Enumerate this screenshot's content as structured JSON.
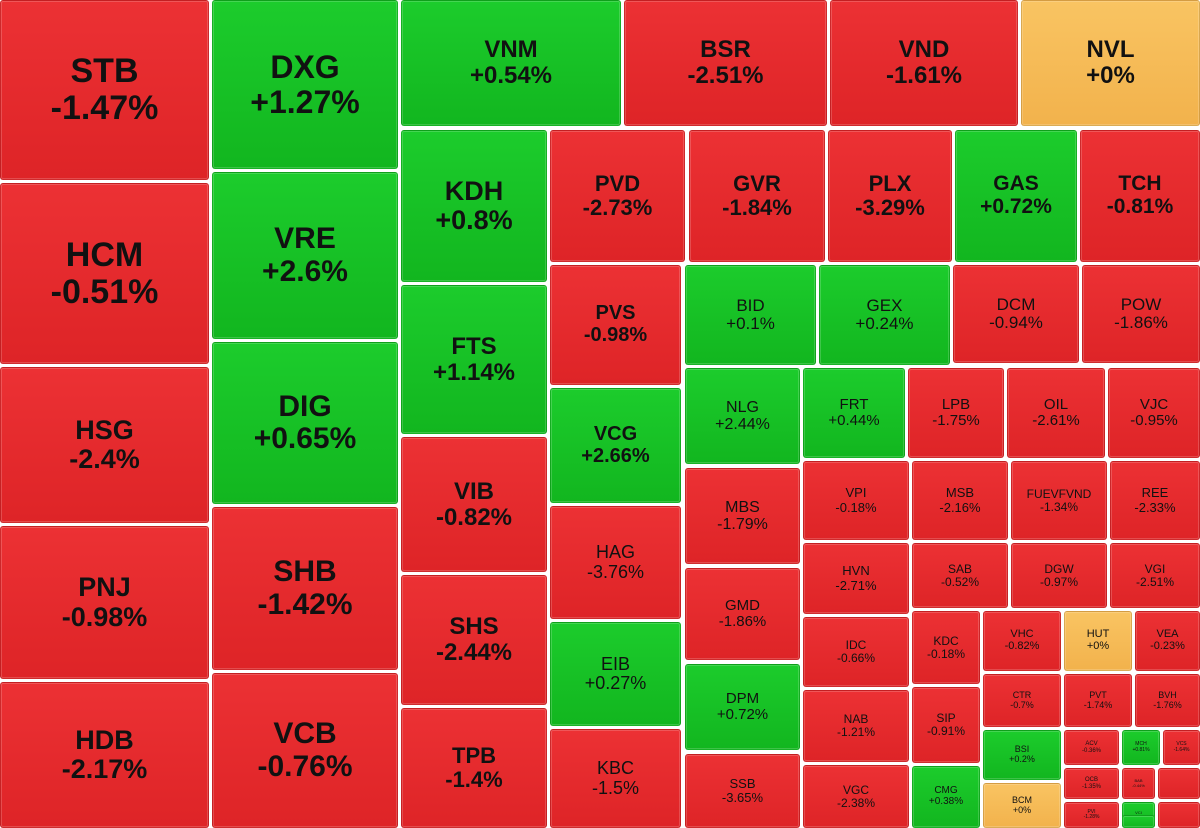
{
  "colors": {
    "down": "#e8282c",
    "up": "#16c225",
    "flat": "#f7bd58"
  },
  "chart_data": {
    "type": "treemap",
    "tiles": [
      {
        "symbol": "STB",
        "change": "-1.47%",
        "value": -1.47
      },
      {
        "symbol": "HCM",
        "change": "-0.51%",
        "value": -0.51
      },
      {
        "symbol": "HSG",
        "change": "-2.4%",
        "value": -2.4
      },
      {
        "symbol": "PNJ",
        "change": "-0.98%",
        "value": -0.98
      },
      {
        "symbol": "HDB",
        "change": "-2.17%",
        "value": -2.17
      },
      {
        "symbol": "DXG",
        "change": "+1.27%",
        "value": 1.27
      },
      {
        "symbol": "VRE",
        "change": "+2.6%",
        "value": 2.6
      },
      {
        "symbol": "DIG",
        "change": "+0.65%",
        "value": 0.65
      },
      {
        "symbol": "SHB",
        "change": "-1.42%",
        "value": -1.42
      },
      {
        "symbol": "VCB",
        "change": "-0.76%",
        "value": -0.76
      },
      {
        "symbol": "VNM",
        "change": "+0.54%",
        "value": 0.54
      },
      {
        "symbol": "BSR",
        "change": "-2.51%",
        "value": -2.51
      },
      {
        "symbol": "VND",
        "change": "-1.61%",
        "value": -1.61
      },
      {
        "symbol": "NVL",
        "change": "+0%",
        "value": 0
      },
      {
        "symbol": "KDH",
        "change": "+0.8%",
        "value": 0.8
      },
      {
        "symbol": "FTS",
        "change": "+1.14%",
        "value": 1.14
      },
      {
        "symbol": "VIB",
        "change": "-0.82%",
        "value": -0.82
      },
      {
        "symbol": "SHS",
        "change": "-2.44%",
        "value": -2.44
      },
      {
        "symbol": "TPB",
        "change": "-1.4%",
        "value": -1.4
      },
      {
        "symbol": "PVD",
        "change": "-2.73%",
        "value": -2.73
      },
      {
        "symbol": "GVR",
        "change": "-1.84%",
        "value": -1.84
      },
      {
        "symbol": "PLX",
        "change": "-3.29%",
        "value": -3.29
      },
      {
        "symbol": "GAS",
        "change": "+0.72%",
        "value": 0.72
      },
      {
        "symbol": "TCH",
        "change": "-0.81%",
        "value": -0.81
      },
      {
        "symbol": "PVS",
        "change": "-0.98%",
        "value": -0.98
      },
      {
        "symbol": "VCG",
        "change": "+2.66%",
        "value": 2.66
      },
      {
        "symbol": "HAG",
        "change": "-3.76%",
        "value": -3.76
      },
      {
        "symbol": "EIB",
        "change": "+0.27%",
        "value": 0.27
      },
      {
        "symbol": "KBC",
        "change": "-1.5%",
        "value": -1.5
      },
      {
        "symbol": "BID",
        "change": "+0.1%",
        "value": 0.1
      },
      {
        "symbol": "GEX",
        "change": "+0.24%",
        "value": 0.24
      },
      {
        "symbol": "DCM",
        "change": "-0.94%",
        "value": -0.94
      },
      {
        "symbol": "POW",
        "change": "-1.86%",
        "value": -1.86
      },
      {
        "symbol": "NLG",
        "change": "+2.44%",
        "value": 2.44
      },
      {
        "symbol": "FRT",
        "change": "+0.44%",
        "value": 0.44
      },
      {
        "symbol": "LPB",
        "change": "-1.75%",
        "value": -1.75
      },
      {
        "symbol": "OIL",
        "change": "-2.61%",
        "value": -2.61
      },
      {
        "symbol": "VJC",
        "change": "-0.95%",
        "value": -0.95
      },
      {
        "symbol": "MBS",
        "change": "-1.79%",
        "value": -1.79
      },
      {
        "symbol": "GMD",
        "change": "-1.86%",
        "value": -1.86
      },
      {
        "symbol": "DPM",
        "change": "+0.72%",
        "value": 0.72
      },
      {
        "symbol": "SSB",
        "change": "-3.65%",
        "value": -3.65
      },
      {
        "symbol": "VPI",
        "change": "-0.18%",
        "value": -0.18
      },
      {
        "symbol": "MSB",
        "change": "-2.16%",
        "value": -2.16
      },
      {
        "symbol": "FUEVFVND",
        "change": "-1.34%",
        "value": -1.34
      },
      {
        "symbol": "REE",
        "change": "-2.33%",
        "value": -2.33
      },
      {
        "symbol": "HVN",
        "change": "-2.71%",
        "value": -2.71
      },
      {
        "symbol": "SAB",
        "change": "-0.52%",
        "value": -0.52
      },
      {
        "symbol": "DGW",
        "change": "-0.97%",
        "value": -0.97
      },
      {
        "symbol": "VGI",
        "change": "-2.51%",
        "value": -2.51
      },
      {
        "symbol": "IDC",
        "change": "-0.66%",
        "value": -0.66
      },
      {
        "symbol": "KDC",
        "change": "-0.18%",
        "value": -0.18
      },
      {
        "symbol": "VHC",
        "change": "-0.82%",
        "value": -0.82
      },
      {
        "symbol": "HUT",
        "change": "+0%",
        "value": 0
      },
      {
        "symbol": "VEA",
        "change": "-0.23%",
        "value": -0.23
      },
      {
        "symbol": "NAB",
        "change": "-1.21%",
        "value": -1.21
      },
      {
        "symbol": "SIP",
        "change": "-0.91%",
        "value": -0.91
      },
      {
        "symbol": "CTR",
        "change": "-0.7%",
        "value": -0.7
      },
      {
        "symbol": "PVT",
        "change": "-1.74%",
        "value": -1.74
      },
      {
        "symbol": "BVH",
        "change": "-1.76%",
        "value": -1.76
      },
      {
        "symbol": "VGC",
        "change": "-2.38%",
        "value": -2.38
      },
      {
        "symbol": "CMG",
        "change": "+0.38%",
        "value": 0.38
      },
      {
        "symbol": "BSI",
        "change": "+0.2%",
        "value": 0.2
      },
      {
        "symbol": "ACV",
        "change": "-0.36%",
        "value": -0.36
      },
      {
        "symbol": "MCH",
        "change": "+0.81%",
        "value": 0.81
      },
      {
        "symbol": "VCS",
        "change": "-1.64%",
        "value": -1.64
      },
      {
        "symbol": "BCM",
        "change": "+0%",
        "value": 0
      },
      {
        "symbol": "OCB",
        "change": "-1.35%",
        "value": -1.35
      },
      {
        "symbol": "BAB",
        "change": "-0.44%",
        "value": -0.44
      },
      {
        "symbol": "PVI",
        "change": "-1.28%",
        "value": -1.28
      },
      {
        "symbol": "VCI",
        "change": "+0.16%",
        "value": 0.16
      }
    ]
  }
}
